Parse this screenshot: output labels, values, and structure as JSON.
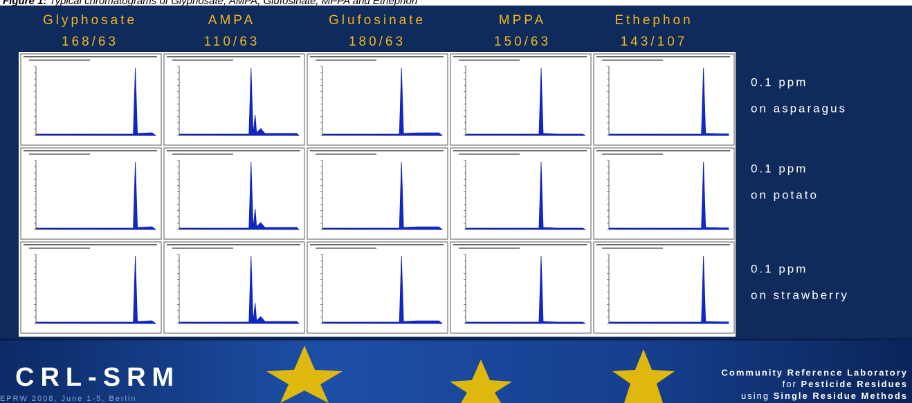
{
  "caption": {
    "label": "Figure 1:",
    "text": "Typical chromatograms of Glyphosate, AMPA, Glufosinate, MPPA and Ethephon"
  },
  "columns": [
    {
      "name": "Glyphosate",
      "transition": "168/63"
    },
    {
      "name": "AMPA",
      "transition": "110/63"
    },
    {
      "name": "Glufosinate",
      "transition": "180/63"
    },
    {
      "name": "MPPA",
      "transition": "150/63"
    },
    {
      "name": "Ethephon",
      "transition": "143/107"
    }
  ],
  "rows": [
    {
      "concentration": "0.1 ppm",
      "matrix": "on asparagus"
    },
    {
      "concentration": "0.1 ppm",
      "matrix": "on potato"
    },
    {
      "concentration": "0.1 ppm",
      "matrix": "on strawberry"
    }
  ],
  "footer": {
    "logo": "CRL-SRM",
    "event": "EPRW 2008, June 1-5, Berlin",
    "title": "Community Reference Laboratory",
    "line2": {
      "prefix": "for",
      "emphasis": "Pesticide Residues"
    },
    "line3": {
      "prefix": "using",
      "emphasis": "Single Residue Methods"
    }
  }
}
